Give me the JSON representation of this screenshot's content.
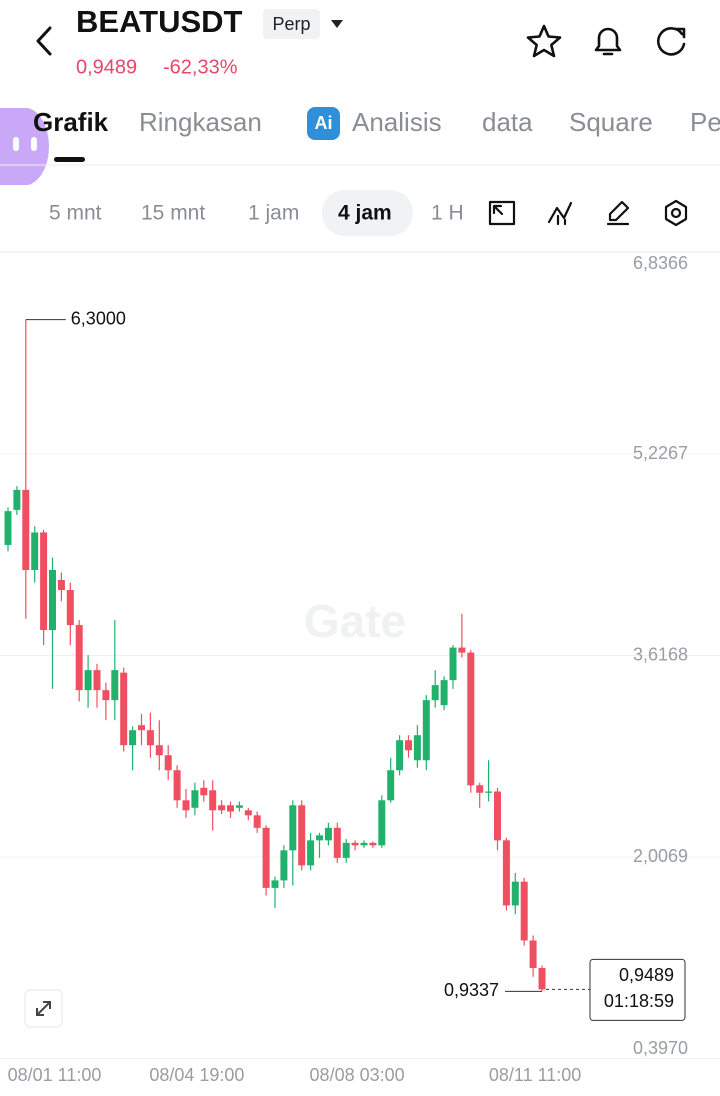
{
  "header": {
    "symbol": "BEATUSDT",
    "badge": "Perp",
    "price": "0,9489",
    "change": "-62,33%"
  },
  "tabs": [
    "Grafik",
    "Ringkasan",
    "Analisis",
    "data",
    "Square",
    "Pe"
  ],
  "intervals": [
    "5 mnt",
    "15 mnt",
    "1 jam",
    "4 jam",
    "1 H"
  ],
  "watermark": "Gate",
  "chart_data": {
    "type": "candlestick",
    "categories": [
      null,
      null,
      null,
      null,
      null,
      "08/01 11:00",
      null,
      null,
      null,
      null,
      null,
      null,
      null,
      null,
      null,
      null,
      null,
      null,
      null,
      null,
      null,
      "08/04 19:00",
      null,
      null,
      null,
      null,
      null,
      null,
      null,
      null,
      null,
      null,
      null,
      null,
      null,
      null,
      null,
      null,
      null,
      "08/08 03:00",
      null,
      null,
      null,
      null,
      null,
      null,
      null,
      null,
      null,
      null,
      null,
      null,
      null,
      null,
      null,
      null,
      null,
      null,
      null,
      "08/11 11:00",
      null
    ],
    "series": [
      {
        "up_color": "#20b26c",
        "down_color": "#ef4f60",
        "open": [
          4.5,
          4.78,
          4.94,
          4.3,
          4.6,
          3.82,
          4.22,
          4.14,
          3.86,
          3.34,
          3.5,
          3.34,
          3.26,
          3.48,
          2.9,
          3.06,
          3.02,
          2.9,
          2.82,
          2.7,
          2.46,
          2.4,
          2.56,
          2.54,
          2.42,
          2.42,
          2.4,
          2.38,
          2.34,
          2.24,
          1.76,
          1.82,
          2.06,
          2.42,
          1.94,
          2.14,
          2.14,
          2.24,
          2.0,
          2.12,
          2.1,
          2.12,
          2.1,
          2.46,
          2.7,
          2.94,
          2.78,
          2.78,
          3.26,
          3.22,
          3.42,
          3.68,
          3.64,
          2.58,
          2.52,
          2.53,
          2.14,
          1.62,
          1.81,
          1.34,
          1.12
        ],
        "high": [
          4.8,
          4.97,
          6.3,
          4.65,
          4.62,
          4.4,
          4.28,
          4.2,
          3.9,
          3.62,
          3.55,
          3.4,
          3.9,
          3.52,
          3.05,
          3.15,
          3.16,
          3.1,
          2.9,
          2.74,
          2.55,
          2.6,
          2.62,
          2.62,
          2.46,
          2.45,
          2.45,
          2.4,
          2.37,
          2.26,
          1.85,
          2.1,
          2.46,
          2.46,
          2.2,
          2.2,
          2.28,
          2.28,
          2.15,
          2.14,
          2.14,
          2.13,
          2.5,
          2.8,
          2.98,
          2.98,
          3.06,
          3.3,
          3.5,
          3.45,
          3.7,
          3.95,
          3.66,
          2.6,
          2.78,
          2.56,
          2.16,
          1.88,
          1.84,
          1.38,
          1.14
        ],
        "low": [
          4.45,
          4.74,
          3.91,
          4.2,
          3.7,
          3.35,
          4.05,
          3.7,
          3.25,
          3.2,
          3.2,
          3.1,
          3.1,
          2.85,
          2.7,
          2.9,
          2.8,
          2.7,
          2.62,
          2.4,
          2.32,
          2.34,
          2.45,
          2.22,
          2.35,
          2.32,
          2.37,
          2.3,
          2.2,
          1.7,
          1.6,
          1.76,
          1.78,
          1.9,
          1.9,
          2.0,
          2.1,
          1.96,
          1.96,
          2.06,
          2.08,
          2.08,
          2.08,
          2.44,
          2.66,
          2.8,
          2.72,
          2.7,
          3.2,
          3.18,
          3.35,
          3.6,
          2.52,
          2.4,
          2.45,
          2.06,
          1.58,
          1.55,
          1.3,
          1.05,
          0.9337
        ],
        "close": [
          4.77,
          4.94,
          4.3,
          4.6,
          3.82,
          4.3,
          4.14,
          3.86,
          3.34,
          3.5,
          3.34,
          3.26,
          3.5,
          2.9,
          3.02,
          3.02,
          2.9,
          2.82,
          2.7,
          2.46,
          2.38,
          2.54,
          2.5,
          2.38,
          2.38,
          2.37,
          2.42,
          2.34,
          2.24,
          1.76,
          1.82,
          2.06,
          2.42,
          1.94,
          2.14,
          2.18,
          2.24,
          2.0,
          2.12,
          2.1,
          2.12,
          2.1,
          2.46,
          2.7,
          2.94,
          2.86,
          2.98,
          3.26,
          3.38,
          3.42,
          3.68,
          3.64,
          2.58,
          2.52,
          2.53,
          2.14,
          1.62,
          1.81,
          1.34,
          1.12,
          0.9489
        ]
      }
    ],
    "ylim": [
      0.397,
      6.8366
    ],
    "yticks": [
      {
        "value": 0.397,
        "label": "0,3970"
      },
      {
        "value": 2.0069,
        "label": "2,0069"
      },
      {
        "value": 3.6168,
        "label": "3,6168"
      },
      {
        "value": 5.2267,
        "label": "5,2267"
      },
      {
        "value": 6.8366,
        "label": "6,8366"
      }
    ],
    "grid": true,
    "annotations": {
      "high": {
        "value": 6.3,
        "label": "6,3000"
      },
      "low": {
        "value": 0.9337,
        "label": "0,9337"
      },
      "last": {
        "value": 0.9489,
        "label": "0,9489"
      },
      "countdown": "01:18:59"
    }
  }
}
